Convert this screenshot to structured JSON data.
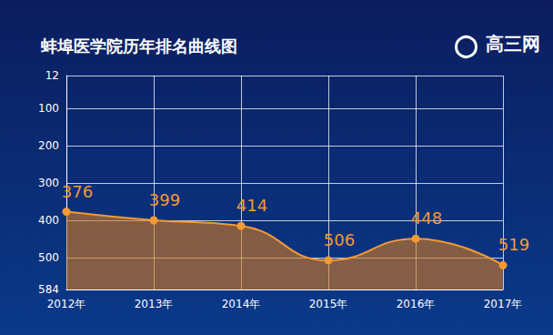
{
  "chart_data": {
    "type": "line",
    "title": "蚌埠医学院历年排名曲线图",
    "annotations": [
      "高三网"
    ],
    "categories": [
      "2012年",
      "2013年",
      "2014年",
      "2015年",
      "2016年",
      "2017年"
    ],
    "values": [
      376,
      399,
      414,
      506,
      448,
      519
    ],
    "color": "#f39a32",
    "ylim": [
      12,
      584
    ],
    "yticks": [
      12,
      100,
      200,
      300,
      400,
      500,
      584
    ],
    "grid": true,
    "data_labels": true,
    "marker": "circle"
  }
}
